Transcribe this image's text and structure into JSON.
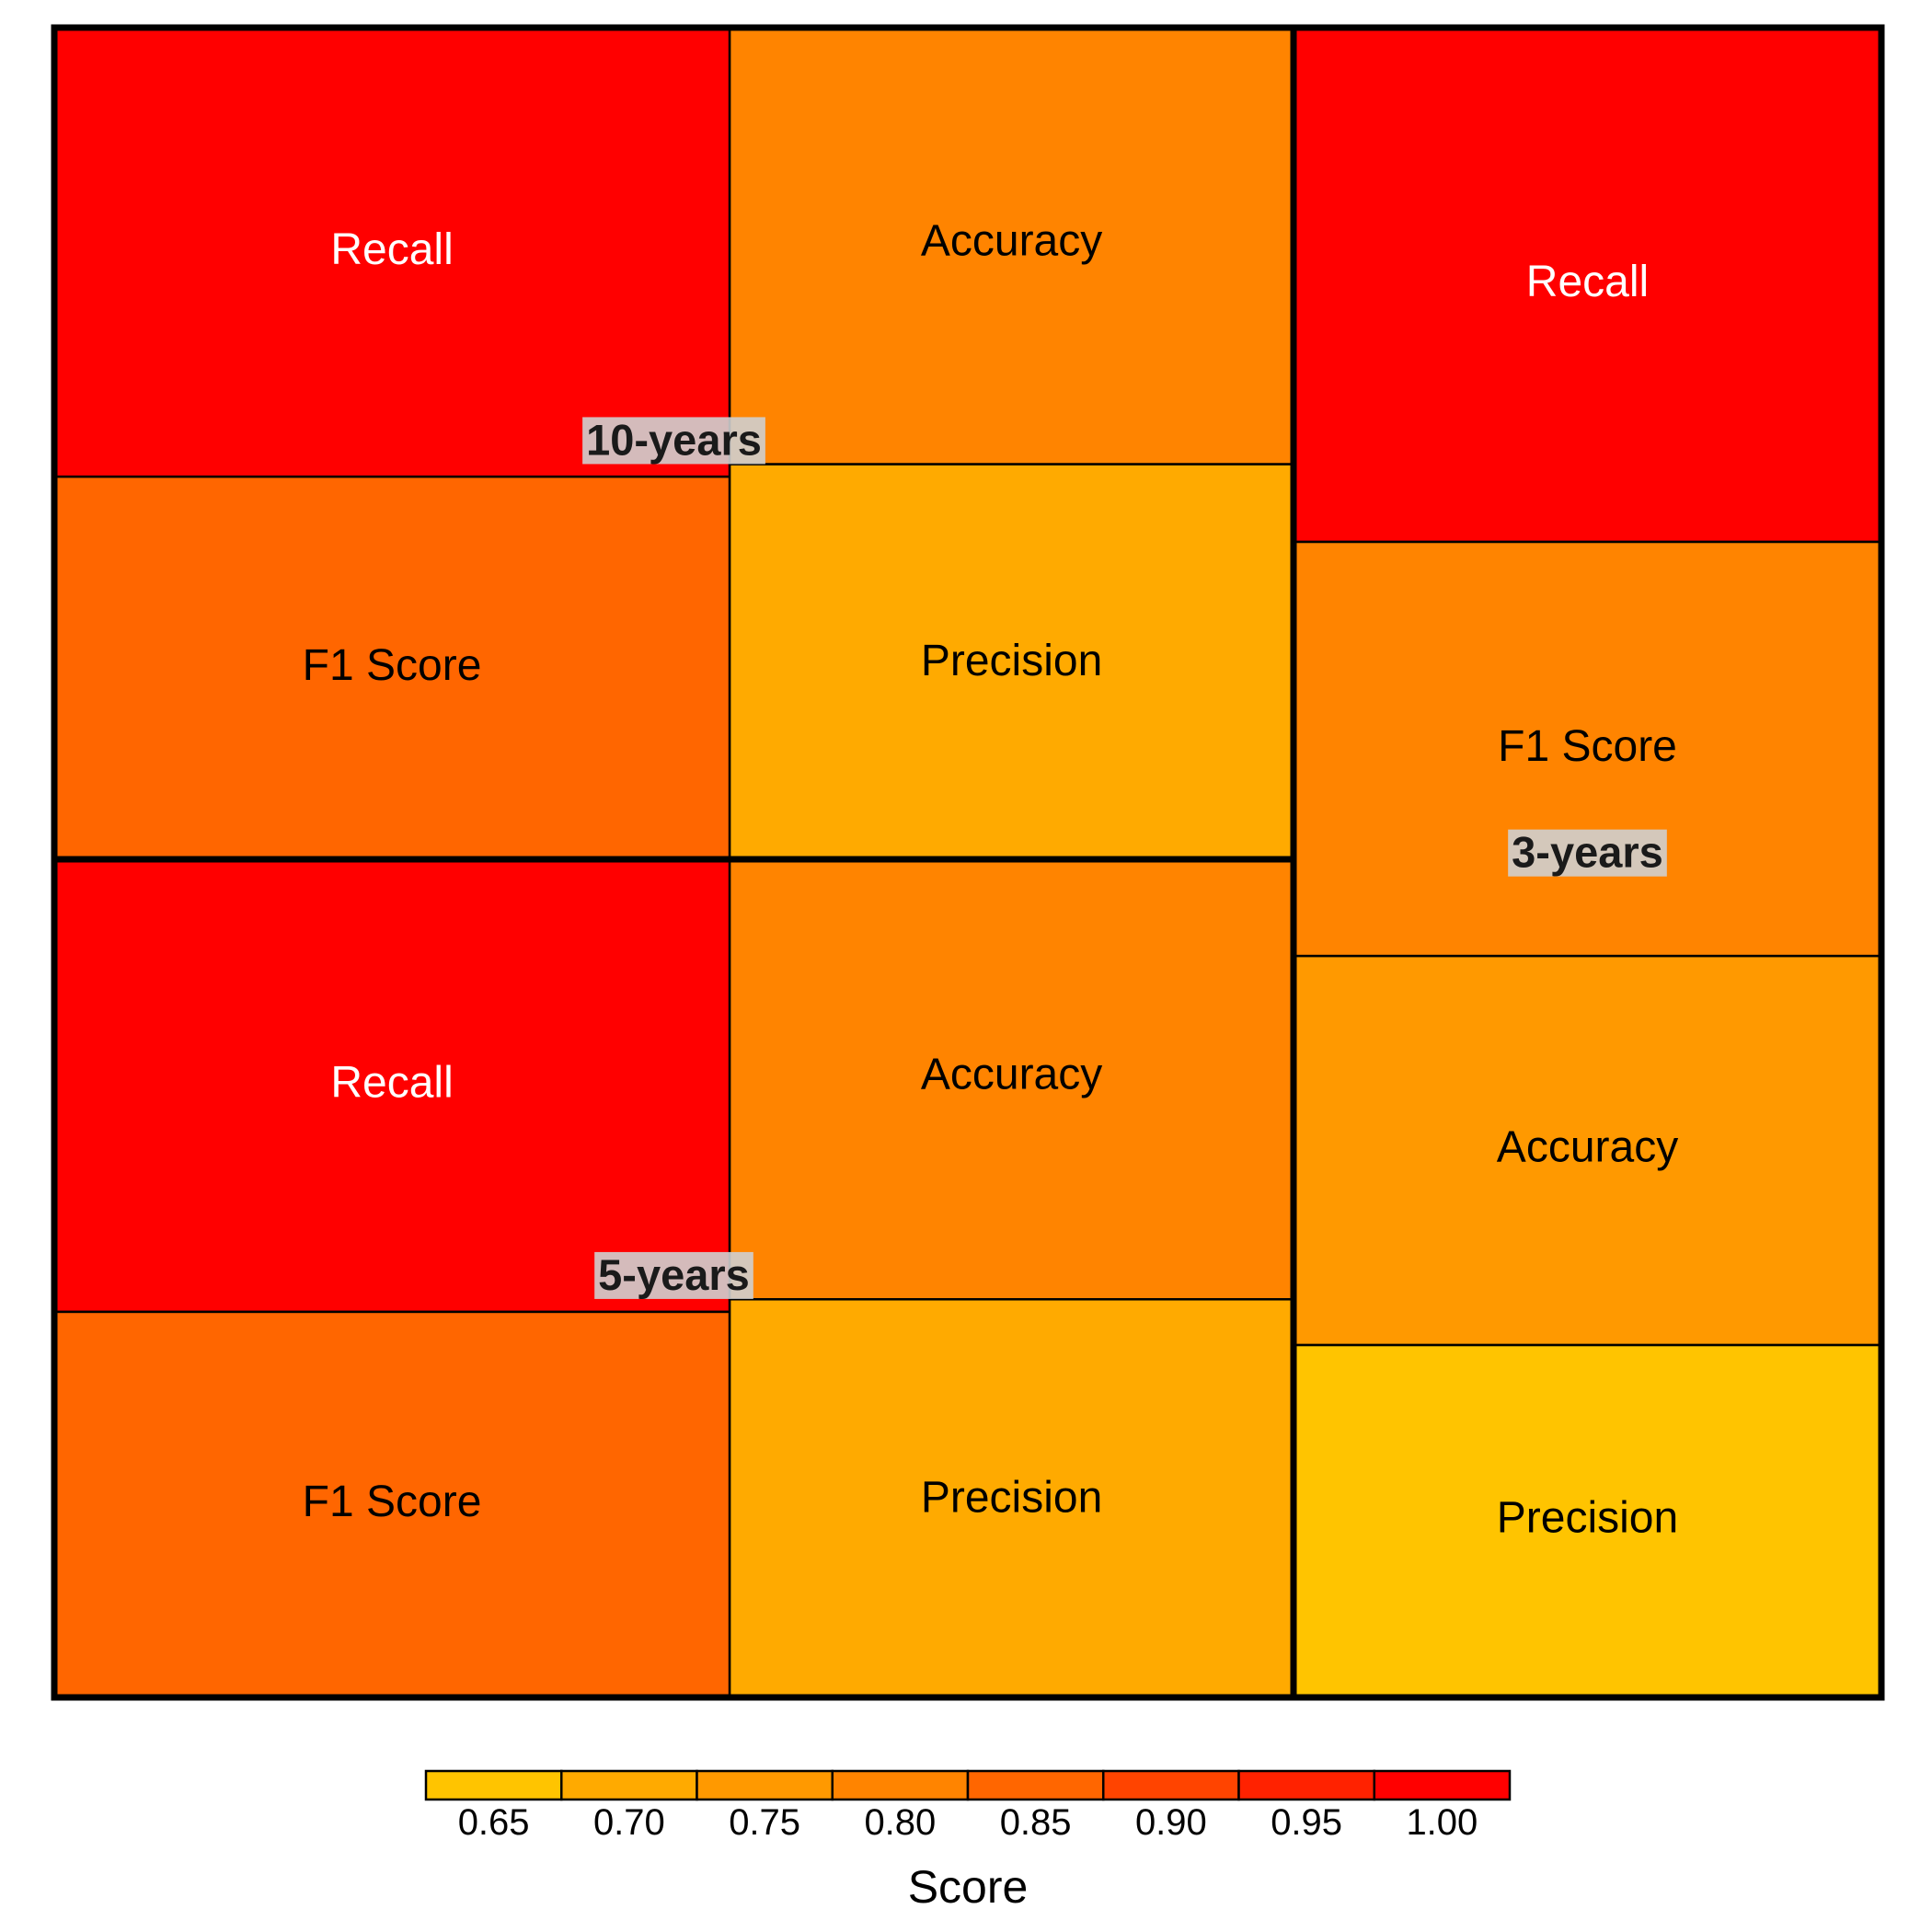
{
  "chart_data": {
    "type": "treemap",
    "title": "",
    "groups": [
      {
        "name": "10-years",
        "items": [
          {
            "label": "Recall",
            "value": 1.0
          },
          {
            "label": "Accuracy",
            "value": 0.79
          },
          {
            "label": "F1 Score",
            "value": 0.85
          },
          {
            "label": "Precision",
            "value": 0.71
          }
        ]
      },
      {
        "name": "5-years",
        "items": [
          {
            "label": "Recall",
            "value": 1.0
          },
          {
            "label": "Accuracy",
            "value": 0.79
          },
          {
            "label": "F1 Score",
            "value": 0.85
          },
          {
            "label": "Precision",
            "value": 0.71
          }
        ]
      },
      {
        "name": "3-years",
        "items": [
          {
            "label": "Recall",
            "value": 1.0
          },
          {
            "label": "F1 Score",
            "value": 0.79
          },
          {
            "label": "Accuracy",
            "value": 0.74
          },
          {
            "label": "Precision",
            "value": 0.65
          }
        ]
      }
    ],
    "legend": {
      "title": "Score",
      "position": "bottom",
      "ticks": [
        "0.65",
        "0.70",
        "0.75",
        "0.80",
        "0.85",
        "0.90",
        "0.95",
        "1.00"
      ],
      "bins": [
        {
          "value": 0.65,
          "color": "#FFC400"
        },
        {
          "value": 0.7,
          "color": "#FFAA00"
        },
        {
          "value": 0.75,
          "color": "#FF9900"
        },
        {
          "value": 0.8,
          "color": "#FF8400"
        },
        {
          "value": 0.85,
          "color": "#FF6600"
        },
        {
          "value": 0.9,
          "color": "#FF4400"
        },
        {
          "value": 0.95,
          "color": "#FF2200"
        },
        {
          "value": 1.0,
          "color": "#FF0000"
        }
      ]
    }
  }
}
